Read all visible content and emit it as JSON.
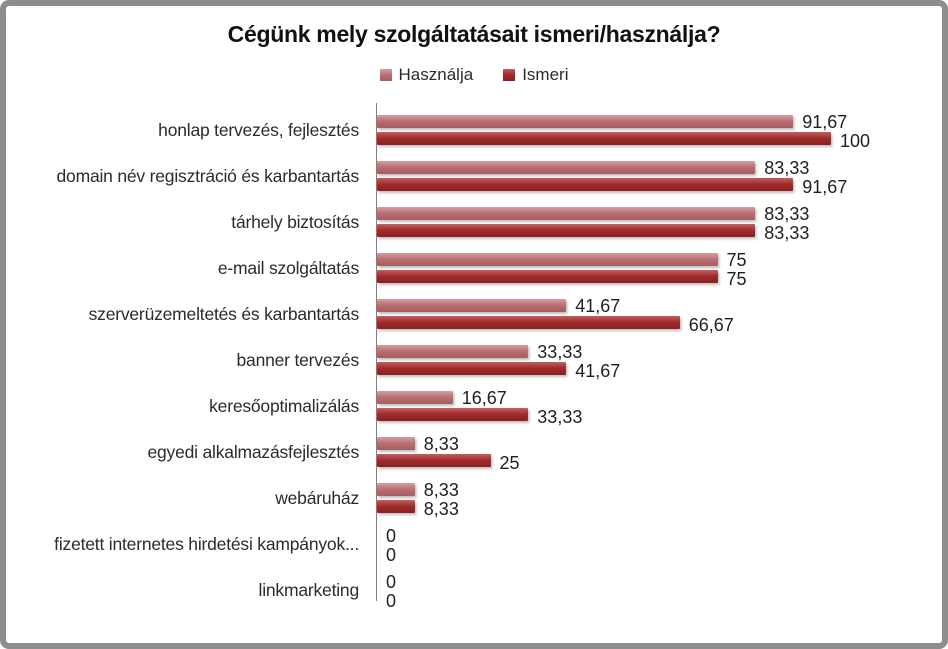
{
  "frame": {
    "border_color": "#8d8d8d",
    "background": "#ffffff",
    "axis_color": "#7f7f7f"
  },
  "chart_data": {
    "type": "bar",
    "orientation": "horizontal",
    "title": "Cégünk mely szolgáltatásait ismeri/használja?",
    "legend_position": "top",
    "xlim": [
      0,
      100
    ],
    "grid": false,
    "value_axis_visible": false,
    "decimal_separator": ",",
    "categories": [
      "honlap tervezés, fejlesztés",
      "domain név regisztráció és karbantartás",
      "tárhely biztosítás",
      "e-mail szolgáltatás",
      "szerverüzemeltetés és karbantartás",
      "banner tervezés",
      "keresőoptimalizálás",
      "egyedi alkalmazásfejlesztés",
      "webáruház",
      "fizetett internetes hirdetési kampányok...",
      "linkmarketing"
    ],
    "series": [
      {
        "name": "Használja",
        "color": "#b96f72",
        "color_light": "#d59ea0",
        "color_dark": "#a65d60",
        "values": [
          91.67,
          83.33,
          83.33,
          75,
          41.67,
          33.33,
          16.67,
          8.33,
          8.33,
          0,
          0
        ],
        "labels": [
          "91,67",
          "83,33",
          "83,33",
          "75",
          "41,67",
          "33,33",
          "16,67",
          "8,33",
          "8,33",
          "0",
          "0"
        ]
      },
      {
        "name": "Ismeri",
        "color": "#a02b2b",
        "color_light": "#c35f5f",
        "color_dark": "#8b1f1f",
        "values": [
          100,
          91.67,
          83.33,
          75,
          66.67,
          41.67,
          33.33,
          25,
          8.33,
          0,
          0
        ],
        "labels": [
          "100",
          "91,67",
          "83,33",
          "75",
          "66,67",
          "41,67",
          "33,33",
          "25",
          "8,33",
          "0",
          "0"
        ]
      }
    ]
  }
}
